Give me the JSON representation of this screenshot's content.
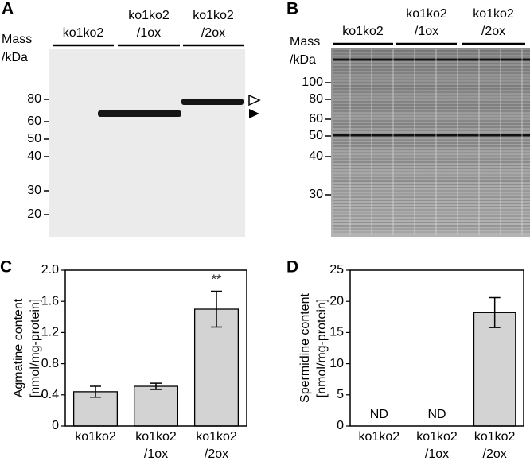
{
  "blots": [
    {
      "panel": "A",
      "mass_label": [
        "Mass",
        "/kDa"
      ],
      "lanes": [
        [
          "ko1ko2"
        ],
        [
          "ko1ko2",
          "/1ox"
        ],
        [
          "ko1ko2",
          "/2ox"
        ]
      ],
      "markers": [
        80,
        60,
        50,
        40,
        30,
        20
      ]
    },
    {
      "panel": "B",
      "mass_label": [
        "Mass",
        "/kDa"
      ],
      "lanes": [
        [
          "ko1ko2"
        ],
        [
          "ko1ko2",
          "/1ox"
        ],
        [
          "ko1ko2",
          "/2ox"
        ]
      ],
      "markers": [
        100,
        80,
        60,
        50,
        40,
        30
      ]
    }
  ],
  "chart_data": [
    {
      "type": "bar",
      "panel": "C",
      "ylabel": [
        "Agmatine content",
        "[nmol/mg-protein]"
      ],
      "categories": [
        [
          "ko1ko2"
        ],
        [
          "ko1ko2",
          "/1ox"
        ],
        [
          "ko1ko2",
          "/2ox"
        ]
      ],
      "values": [
        0.44,
        0.51,
        1.5
      ],
      "errors": [
        0.07,
        0.04,
        0.23
      ],
      "annotations": [
        null,
        null,
        "**"
      ],
      "color": "#d3d3d3",
      "ylim": [
        0,
        2
      ],
      "yticks": [
        0,
        0.4,
        0.8,
        1.2,
        1.6,
        {
          "value": 2,
          "label": "2.0"
        }
      ]
    },
    {
      "type": "bar",
      "panel": "D",
      "ylabel": [
        "Spermidine content",
        "[nmol/mg-protein]"
      ],
      "categories": [
        [
          "ko1ko2"
        ],
        [
          "ko1ko2",
          "/1ox"
        ],
        [
          "ko1ko2",
          "/2ox"
        ]
      ],
      "values": [
        null,
        null,
        18.2
      ],
      "errors": [
        null,
        null,
        2.4
      ],
      "annotations": [
        "ND",
        "ND",
        null
      ],
      "color": "#d3d3d3",
      "ylim": [
        0,
        25
      ],
      "yticks": [
        0,
        5,
        10,
        15,
        20,
        25
      ]
    }
  ]
}
